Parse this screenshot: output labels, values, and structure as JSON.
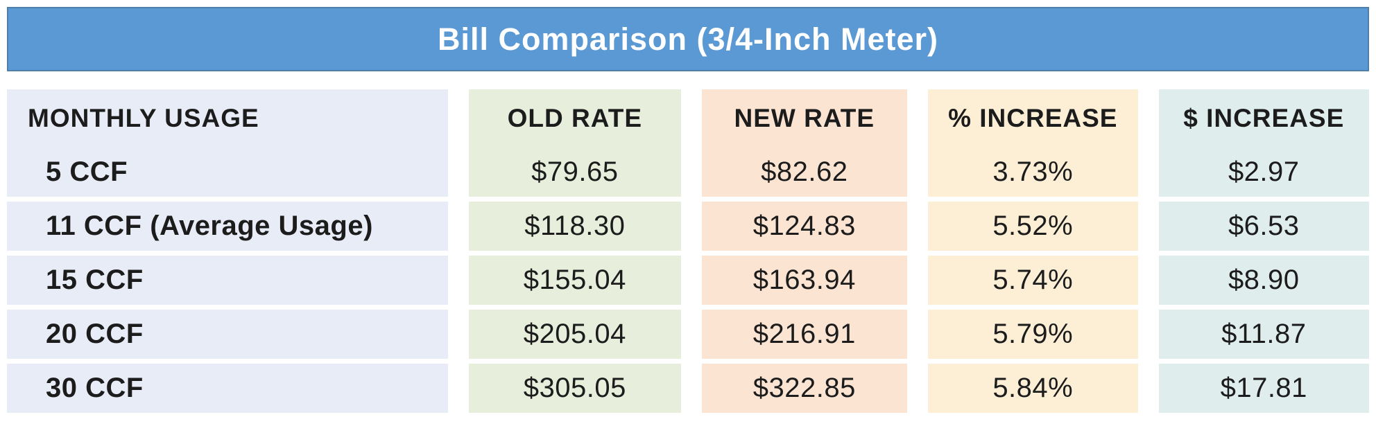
{
  "title_bar": {
    "title": "Bill Comparison (3/4-Inch Meter)"
  },
  "chart_data": {
    "type": "table",
    "title": "Bill Comparison (3/4-Inch Meter)",
    "columns": [
      "MONTHLY USAGE",
      "OLD RATE",
      "NEW RATE",
      "% INCREASE",
      "$ INCREASE"
    ],
    "rows": [
      [
        "5 CCF",
        "$79.65",
        "$82.62",
        "3.73%",
        "$2.97"
      ],
      [
        "11 CCF (Average Usage)",
        "$118.30",
        "$124.83",
        "5.52%",
        "$6.53"
      ],
      [
        "15 CCF",
        "$155.04",
        "$163.94",
        "5.74%",
        "$8.90"
      ],
      [
        "20 CCF",
        "$205.04",
        "$216.91",
        "5.79%",
        "$11.87"
      ],
      [
        "30 CCF",
        "$305.05",
        "$322.85",
        "5.84%",
        "$17.81"
      ]
    ],
    "layout": {
      "header_row_fused_with_first_data_row": true,
      "numeric_columns_alignment": "center",
      "usage_column_alignment": "left"
    }
  },
  "colors": {
    "header_bar": "#5b99d4",
    "header_bar_border": "#4d7fa9",
    "title_text": "#ffffff",
    "body_text": "#1c1c1c",
    "col_monthly_usage": "#e8ecf6",
    "col_old_rate": "#e7efdc",
    "col_new_rate": "#fce4d3",
    "col_pct_increase": "#fcefd6",
    "col_dollar_increase": "#dfedec"
  }
}
